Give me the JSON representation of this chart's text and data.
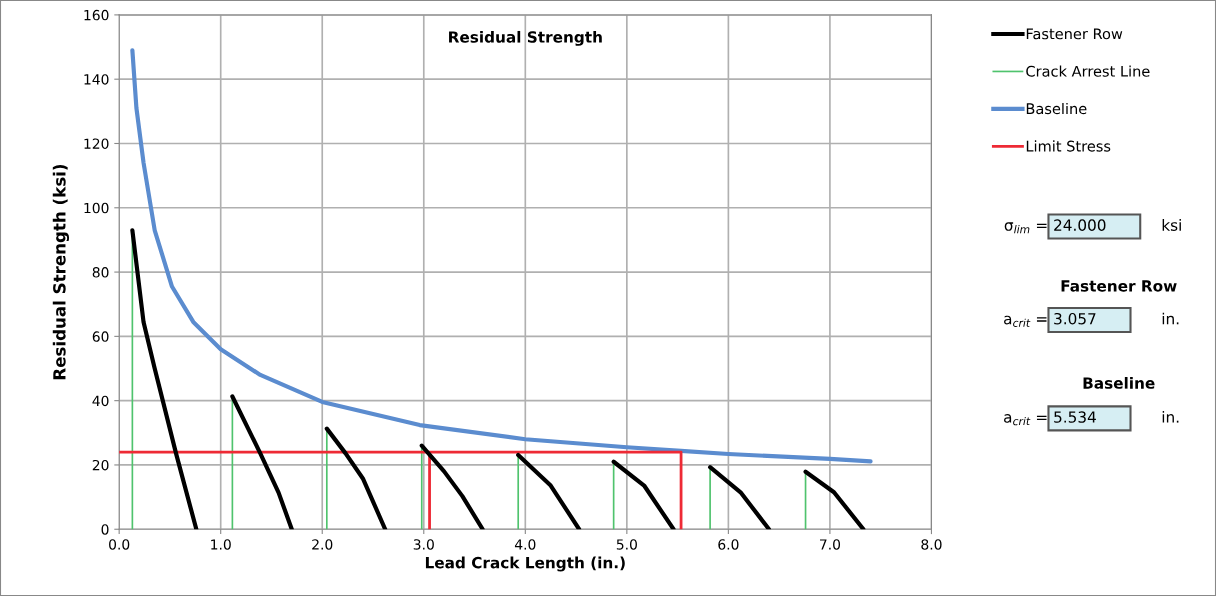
{
  "chart_data": {
    "type": "line",
    "title": "Residual Strength",
    "xlabel": "Lead Crack Length (in.)",
    "ylabel": "Residual Strength (ksi)",
    "xlim": [
      0,
      8
    ],
    "xticks": [
      {
        "value": 0,
        "label": "0.0"
      },
      {
        "value": 1,
        "label": "1.0"
      },
      {
        "value": 2,
        "label": "2.0"
      },
      {
        "value": 3,
        "label": "3.0"
      },
      {
        "value": 4,
        "label": "4.0"
      },
      {
        "value": 5,
        "label": "5.0"
      },
      {
        "value": 6,
        "label": "6.0"
      },
      {
        "value": 7,
        "label": "7.0"
      },
      {
        "value": 8,
        "label": "8.0"
      }
    ],
    "ylim": [
      0,
      160
    ],
    "yticks": [
      0,
      20,
      40,
      60,
      80,
      100,
      120,
      140,
      160
    ],
    "grid": true,
    "legend": "top right",
    "marker": "none",
    "line_style": "solid",
    "series": [
      {
        "name": "Fastener Row",
        "color": "#000000",
        "x": [
          0.13,
          0.24,
          0.35,
          0.56,
          0.76,
          null,
          1.115,
          1.39,
          1.57,
          1.7,
          null,
          2.045,
          2.23,
          2.4,
          2.62,
          null,
          2.98,
          3.2,
          3.38,
          3.58,
          null,
          3.93,
          4.25,
          4.53,
          null,
          4.87,
          5.17,
          5.46,
          null,
          5.82,
          6.12,
          6.4,
          null,
          6.76,
          7.04,
          7.33
        ],
        "values": [
          93,
          64.5,
          50,
          23.6,
          0,
          null,
          41.3,
          23.6,
          11.4,
          0,
          null,
          31.3,
          23.6,
          15.8,
          0,
          null,
          26,
          18,
          10.3,
          0,
          null,
          23.1,
          13.6,
          0,
          null,
          21,
          13.6,
          0,
          null,
          19.3,
          11.5,
          0,
          null,
          17.9,
          11.5,
          0
        ]
      },
      {
        "name": "Crack Arrest Line",
        "color": "#4fc36d",
        "x": [
          0.13,
          0.13,
          null,
          1.115,
          1.115,
          null,
          2.045,
          2.045,
          null,
          2.98,
          2.98,
          null,
          3.93,
          3.93,
          null,
          4.87,
          4.87,
          null,
          5.82,
          5.82,
          null,
          6.76,
          6.76
        ],
        "values": [
          0,
          93,
          null,
          0,
          41.3,
          null,
          0,
          31.3,
          null,
          0,
          26,
          null,
          0,
          23.1,
          null,
          0,
          21,
          null,
          0,
          19.3,
          null,
          0,
          17.9
        ]
      },
      {
        "name": "Baseline",
        "color": "#5b8ccf",
        "x": [
          0.13,
          0.17,
          0.24,
          0.35,
          0.52,
          0.73,
          1.0,
          1.39,
          2.0,
          2.96,
          4.0,
          5.0,
          5.534,
          6.0,
          7.0,
          7.4
        ],
        "values": [
          149,
          131,
          114,
          93,
          75.5,
          64.5,
          56,
          48,
          39.6,
          32.4,
          28,
          25.5,
          24.4,
          23.4,
          21.9,
          21.1
        ]
      },
      {
        "name": "Limit Stress",
        "color": "#ee2a35",
        "x": [
          0,
          5.534,
          5.534,
          null,
          3.057,
          3.057
        ],
        "values": [
          24,
          24,
          0,
          null,
          24,
          0
        ]
      }
    ],
    "annotations": [
      "σ$_{lim}$ =",
      "24.000",
      "ksi",
      "Fastener Row",
      "a$_{crit}$ =",
      "3.057",
      "in.",
      "Baseline",
      "a$_{crit}$ =",
      "5.534",
      "in."
    ]
  }
}
